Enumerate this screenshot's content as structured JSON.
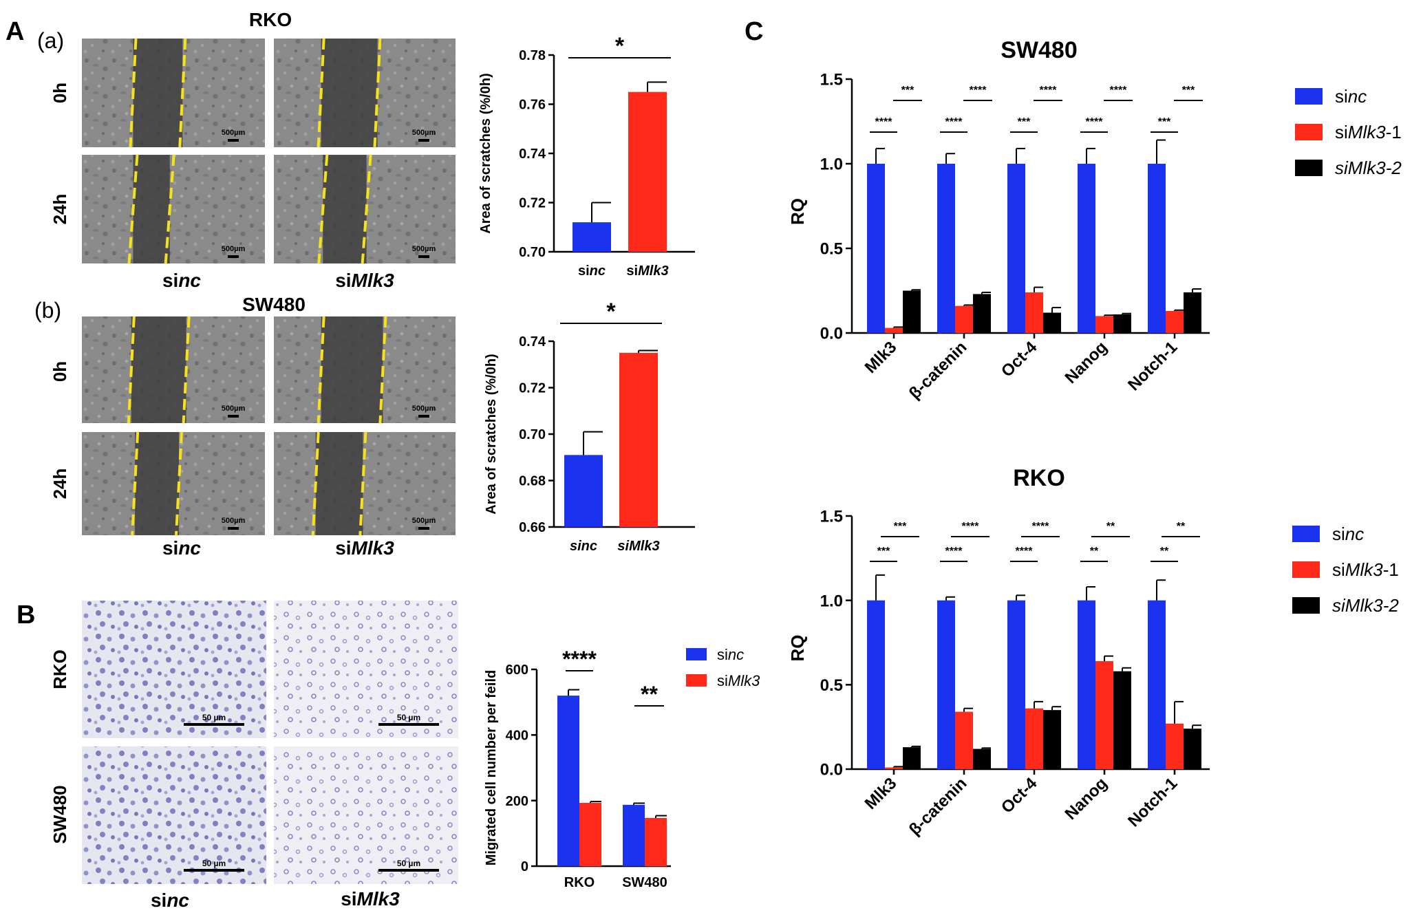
{
  "panel_letters": {
    "A": "A",
    "B": "B",
    "C": "C"
  },
  "sub_labels": {
    "a": "(a)",
    "b": "(b)"
  },
  "micrographs": {
    "A_a": {
      "title": "RKO",
      "rows": [
        "0h",
        "24h"
      ],
      "cols": [
        "sinc",
        "siMlk3"
      ],
      "scale": "500µm"
    },
    "A_b": {
      "title": "SW480",
      "rows": [
        "0h",
        "24h"
      ],
      "cols": [
        "sinc",
        "siMlk3"
      ],
      "scale": "500µm"
    },
    "B": {
      "rows": [
        "RKO",
        "SW480"
      ],
      "cols": [
        "sinc",
        "siMlk3"
      ],
      "scale": "50 µm"
    }
  },
  "colors": {
    "sinc": "#1b33ee",
    "si1": "#ff2a1a",
    "si2": "#000000",
    "scratch_line": "#f6e21a"
  },
  "chart_data": [
    {
      "id": "Aa",
      "type": "bar",
      "categories": [
        "sinc",
        "siMlk3"
      ],
      "values": [
        0.712,
        0.765
      ],
      "errors": [
        0.008,
        0.004
      ],
      "ylabel": "Area of scratches (%/0h)",
      "ylim": [
        0.7,
        0.78
      ],
      "yticks": [
        "0.70",
        "0.72",
        "0.74",
        "0.76",
        "0.78"
      ],
      "significance": "*"
    },
    {
      "id": "Ab",
      "type": "bar",
      "categories": [
        "sinc",
        "siMlk3"
      ],
      "values": [
        0.691,
        0.735
      ],
      "errors": [
        0.01,
        0.001
      ],
      "ylabel": "Area of scratches (%/0h)",
      "ylim": [
        0.66,
        0.74
      ],
      "yticks": [
        "0.66",
        "0.68",
        "0.70",
        "0.72",
        "0.74"
      ],
      "significance": "*"
    },
    {
      "id": "B",
      "type": "bar",
      "categories": [
        "RKO",
        "SW480"
      ],
      "ylabel": "Migrated cell number per feild",
      "ylim": [
        0,
        600
      ],
      "yticks": [
        "0",
        "200",
        "400",
        "600"
      ],
      "series": [
        {
          "name": "sinc",
          "values": [
            520,
            187
          ],
          "errors": [
            18,
            5
          ]
        },
        {
          "name": "siMlk3",
          "values": [
            193,
            147
          ],
          "errors": [
            4,
            7
          ]
        }
      ],
      "significance": [
        "****",
        "**"
      ],
      "legend": "top-right"
    },
    {
      "id": "C_SW480",
      "type": "bar",
      "title": "SW480",
      "ylabel": "RQ",
      "ylim": [
        0,
        1.5
      ],
      "yticks": [
        "0.0",
        "0.5",
        "1.0",
        "1.5"
      ],
      "categories": [
        "Mlk3",
        "β-catenin",
        "Oct-4",
        "Nanog",
        "Notch-1"
      ],
      "series": [
        {
          "name": "sinc",
          "values": [
            1.0,
            1.0,
            1.0,
            1.0,
            1.0
          ],
          "errors": [
            0.09,
            0.06,
            0.09,
            0.09,
            0.14
          ]
        },
        {
          "name": "siMlk3-1",
          "values": [
            0.03,
            0.16,
            0.24,
            0.1,
            0.13
          ],
          "errors": [
            0.005,
            0.005,
            0.03,
            0.005,
            0.005
          ]
        },
        {
          "name": "siMlk3-2",
          "values": [
            0.25,
            0.23,
            0.12,
            0.11,
            0.24
          ],
          "errors": [
            0.005,
            0.01,
            0.03,
            0.005,
            0.02
          ]
        }
      ],
      "sig_low": [
        "****",
        "****",
        "***",
        "****",
        "***"
      ],
      "sig_high": [
        "***",
        "****",
        "****",
        "****",
        "***"
      ],
      "legend": "top-right"
    },
    {
      "id": "C_RKO",
      "type": "bar",
      "title": "RKO",
      "ylabel": "RQ",
      "ylim": [
        0,
        1.5
      ],
      "yticks": [
        "0.0",
        "0.5",
        "1.0",
        "1.5"
      ],
      "categories": [
        "Mlk3",
        "β-catenin",
        "Oct-4",
        "Nanog",
        "Notch-1"
      ],
      "series": [
        {
          "name": "sinc",
          "values": [
            1.0,
            1.0,
            1.0,
            1.0,
            1.0
          ],
          "errors": [
            0.15,
            0.02,
            0.03,
            0.08,
            0.12
          ]
        },
        {
          "name": "siMlk3-1",
          "values": [
            0.01,
            0.34,
            0.36,
            0.64,
            0.27
          ],
          "errors": [
            0.005,
            0.02,
            0.04,
            0.03,
            0.13
          ]
        },
        {
          "name": "siMlk3-2",
          "values": [
            0.13,
            0.12,
            0.35,
            0.58,
            0.24
          ],
          "errors": [
            0.005,
            0.005,
            0.02,
            0.02,
            0.02
          ]
        }
      ],
      "sig_low": [
        "***",
        "****",
        "****",
        "**",
        "**"
      ],
      "sig_high": [
        "***",
        "****",
        "****",
        "**",
        "**"
      ],
      "legend": "top-right"
    }
  ]
}
